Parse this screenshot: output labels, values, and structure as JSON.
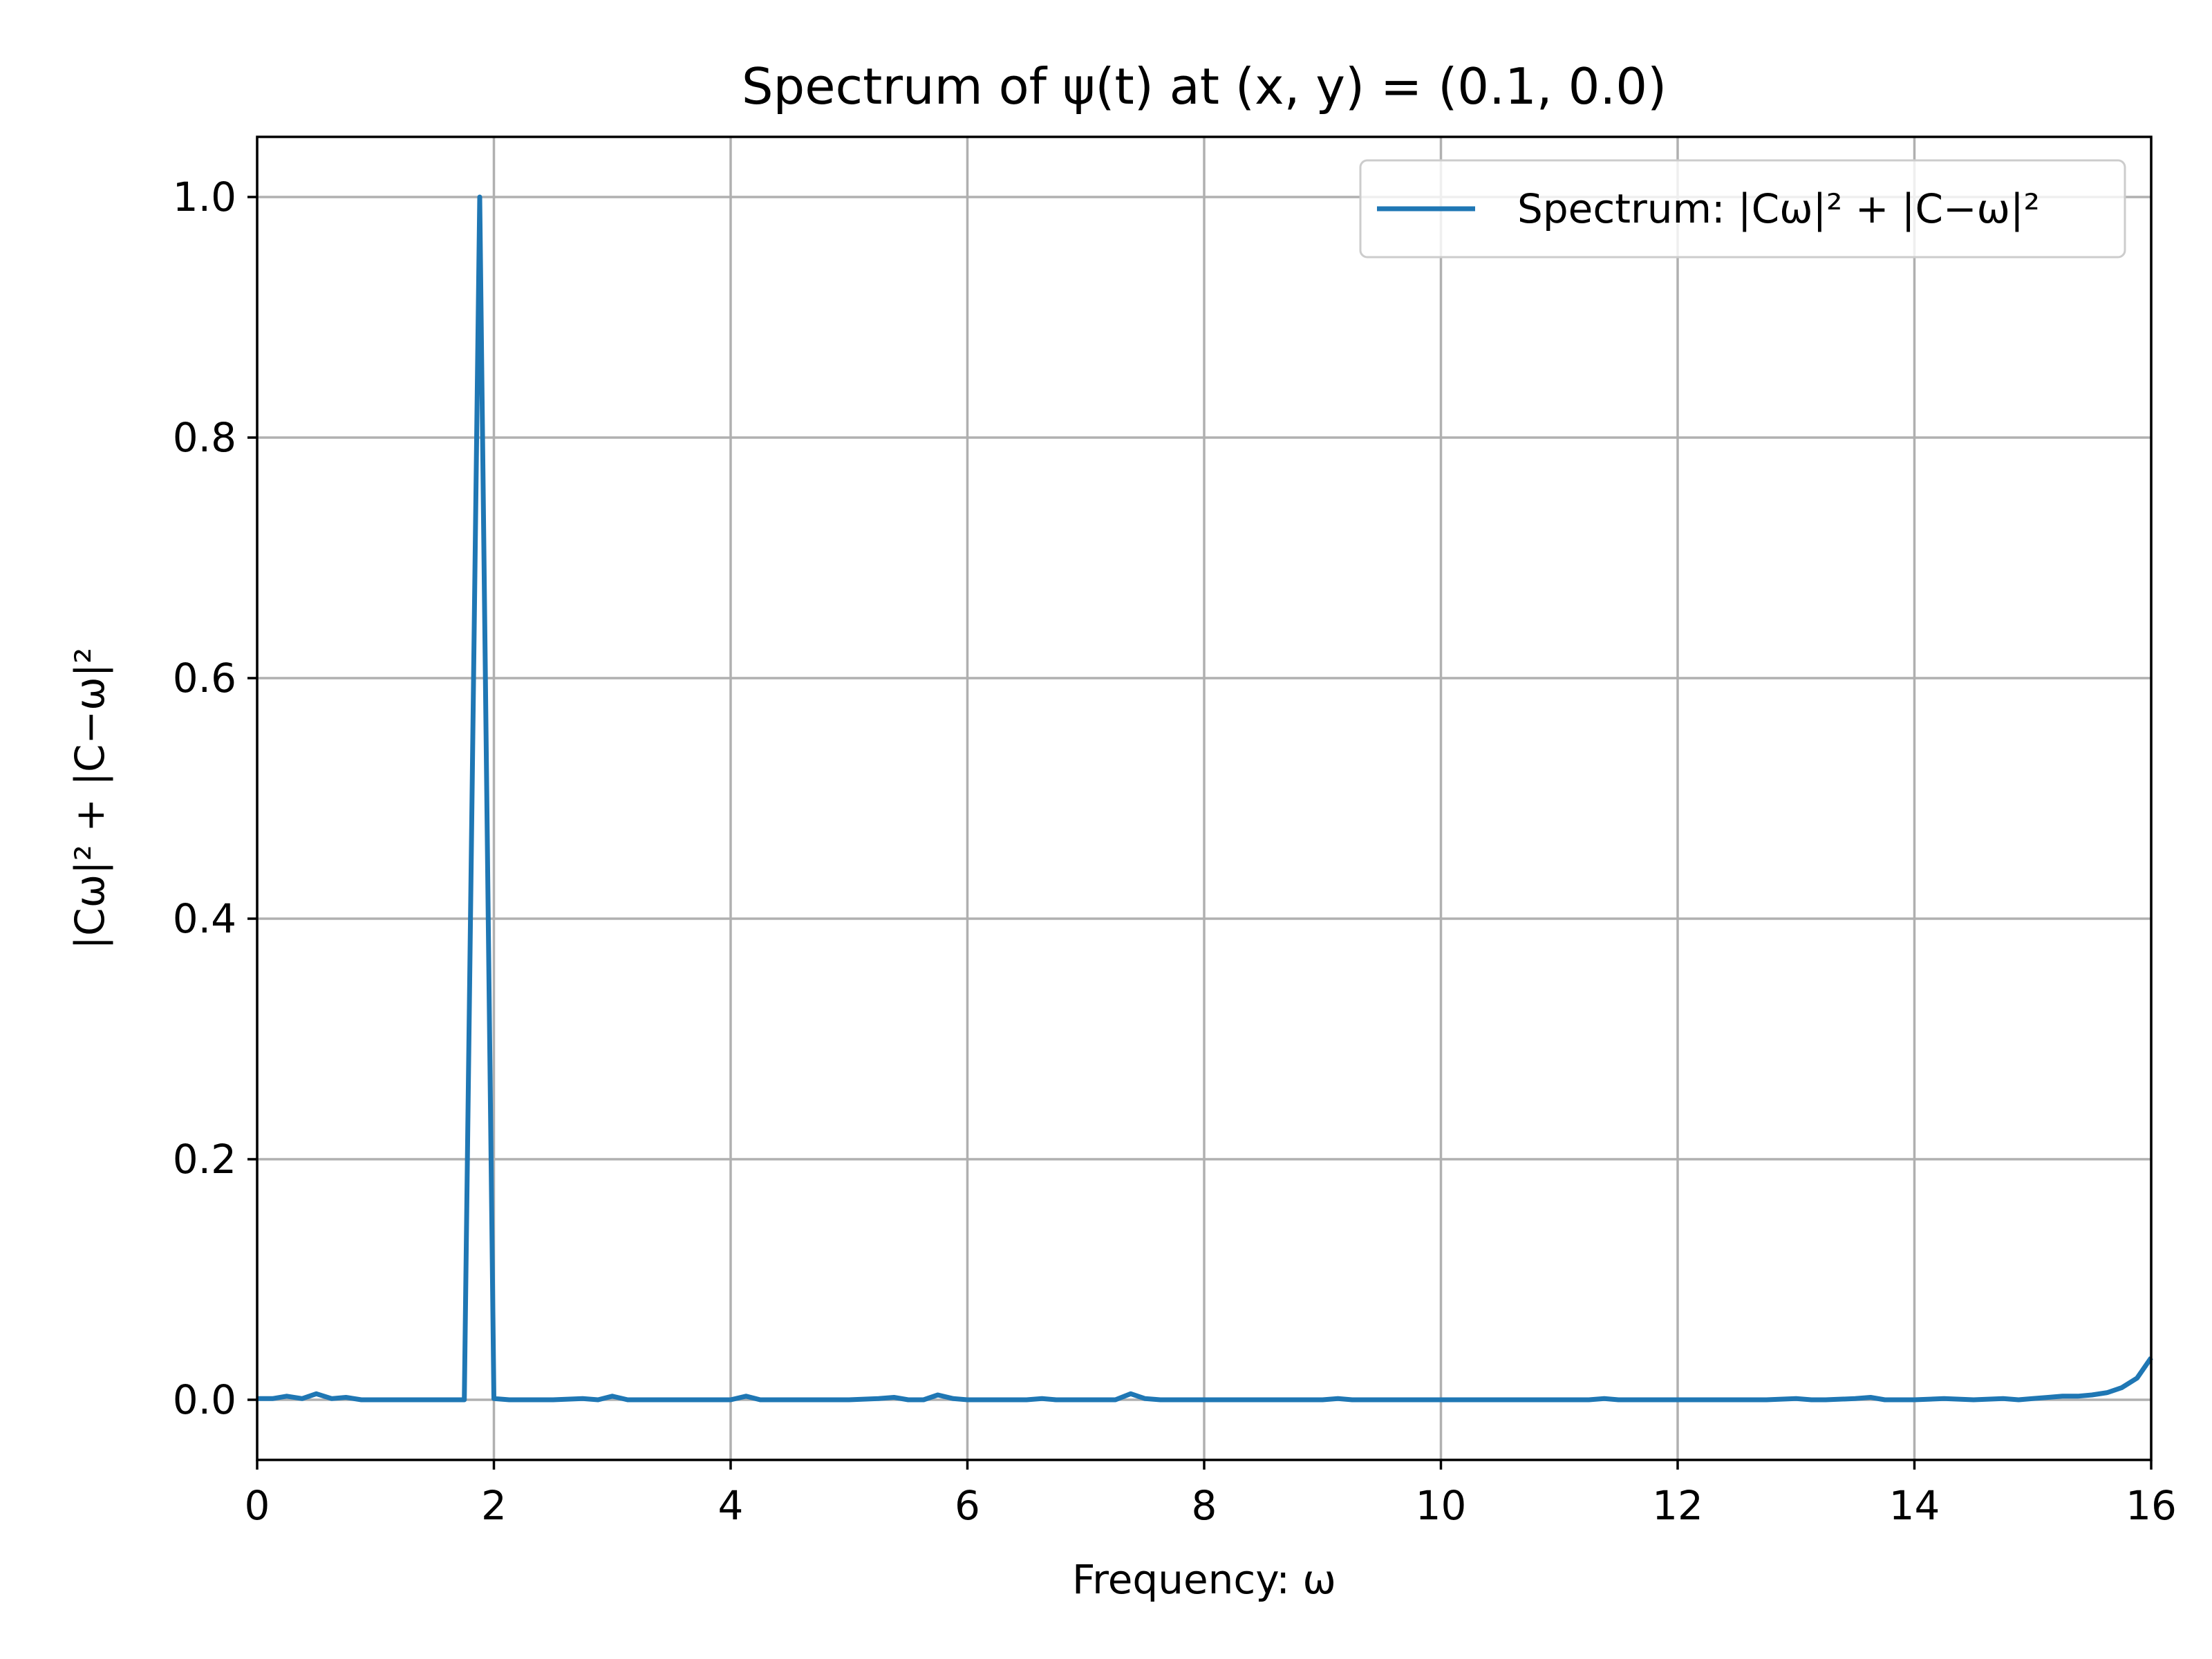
{
  "chart_data": {
    "type": "line",
    "title": "Spectrum of ψ(t) at (x, y) = (0.1, 0.0)",
    "xlabel": "Frequency: ω",
    "ylabel": "|Cω|² + |C−ω|²",
    "xlim": [
      0,
      16
    ],
    "ylim": [
      -0.05,
      1.05
    ],
    "xticks": [
      0,
      2,
      4,
      6,
      8,
      10,
      12,
      14,
      16
    ],
    "yticks": [
      0.0,
      0.2,
      0.4,
      0.6,
      0.8,
      1.0
    ],
    "xtick_labels": [
      "0",
      "2",
      "4",
      "6",
      "8",
      "10",
      "12",
      "14",
      "16"
    ],
    "ytick_labels": [
      "0.0",
      "0.2",
      "0.4",
      "0.6",
      "0.8",
      "1.0"
    ],
    "grid": true,
    "legend": "top-right",
    "series": [
      {
        "name": "Spectrum: |Cω|² + |C−ω|²",
        "color": "#1f77b4",
        "x": [
          0,
          0.13,
          0.25,
          0.38,
          0.5,
          0.63,
          0.75,
          0.88,
          1.0,
          1.25,
          1.5,
          1.75,
          1.88,
          2.0,
          2.13,
          2.5,
          2.75,
          2.88,
          3.0,
          3.13,
          3.25,
          3.5,
          3.75,
          4.0,
          4.13,
          4.25,
          4.5,
          4.75,
          5.0,
          5.25,
          5.38,
          5.5,
          5.63,
          5.75,
          5.88,
          6.0,
          6.25,
          6.5,
          6.63,
          6.75,
          7.0,
          7.25,
          7.38,
          7.5,
          7.63,
          7.75,
          8.0,
          8.25,
          8.5,
          8.75,
          9.0,
          9.13,
          9.25,
          9.5,
          9.75,
          10.0,
          10.5,
          11.0,
          11.25,
          11.38,
          11.5,
          11.75,
          12.0,
          12.25,
          12.5,
          12.75,
          13.0,
          13.13,
          13.25,
          13.5,
          13.63,
          13.75,
          14.0,
          14.25,
          14.5,
          14.75,
          14.88,
          15.0,
          15.13,
          15.25,
          15.38,
          15.5,
          15.63,
          15.75,
          15.88,
          16.0
        ],
        "y": [
          0.001,
          0.001,
          0.003,
          0.001,
          0.005,
          0.001,
          0.002,
          0.0,
          0.0,
          0.0,
          0.0,
          0.0,
          1.0,
          0.001,
          0.0,
          0.0,
          0.001,
          0.0,
          0.003,
          0.0,
          0.0,
          0.0,
          0.0,
          0.0,
          0.003,
          0.0,
          0.0,
          0.0,
          0.0,
          0.001,
          0.002,
          0.0,
          0.0,
          0.004,
          0.001,
          0.0,
          0.0,
          0.0,
          0.001,
          0.0,
          0.0,
          0.0,
          0.005,
          0.001,
          0.0,
          0.0,
          0.0,
          0.0,
          0.0,
          0.0,
          0.0,
          0.001,
          0.0,
          0.0,
          0.0,
          0.0,
          0.0,
          0.0,
          0.0,
          0.001,
          0.0,
          0.0,
          0.0,
          0.0,
          0.0,
          0.0,
          0.001,
          0.0,
          0.0,
          0.001,
          0.002,
          0.0,
          0.0,
          0.001,
          0.0,
          0.001,
          0.0,
          0.001,
          0.002,
          0.003,
          0.003,
          0.004,
          0.006,
          0.01,
          0.018,
          0.035
        ]
      }
    ]
  }
}
